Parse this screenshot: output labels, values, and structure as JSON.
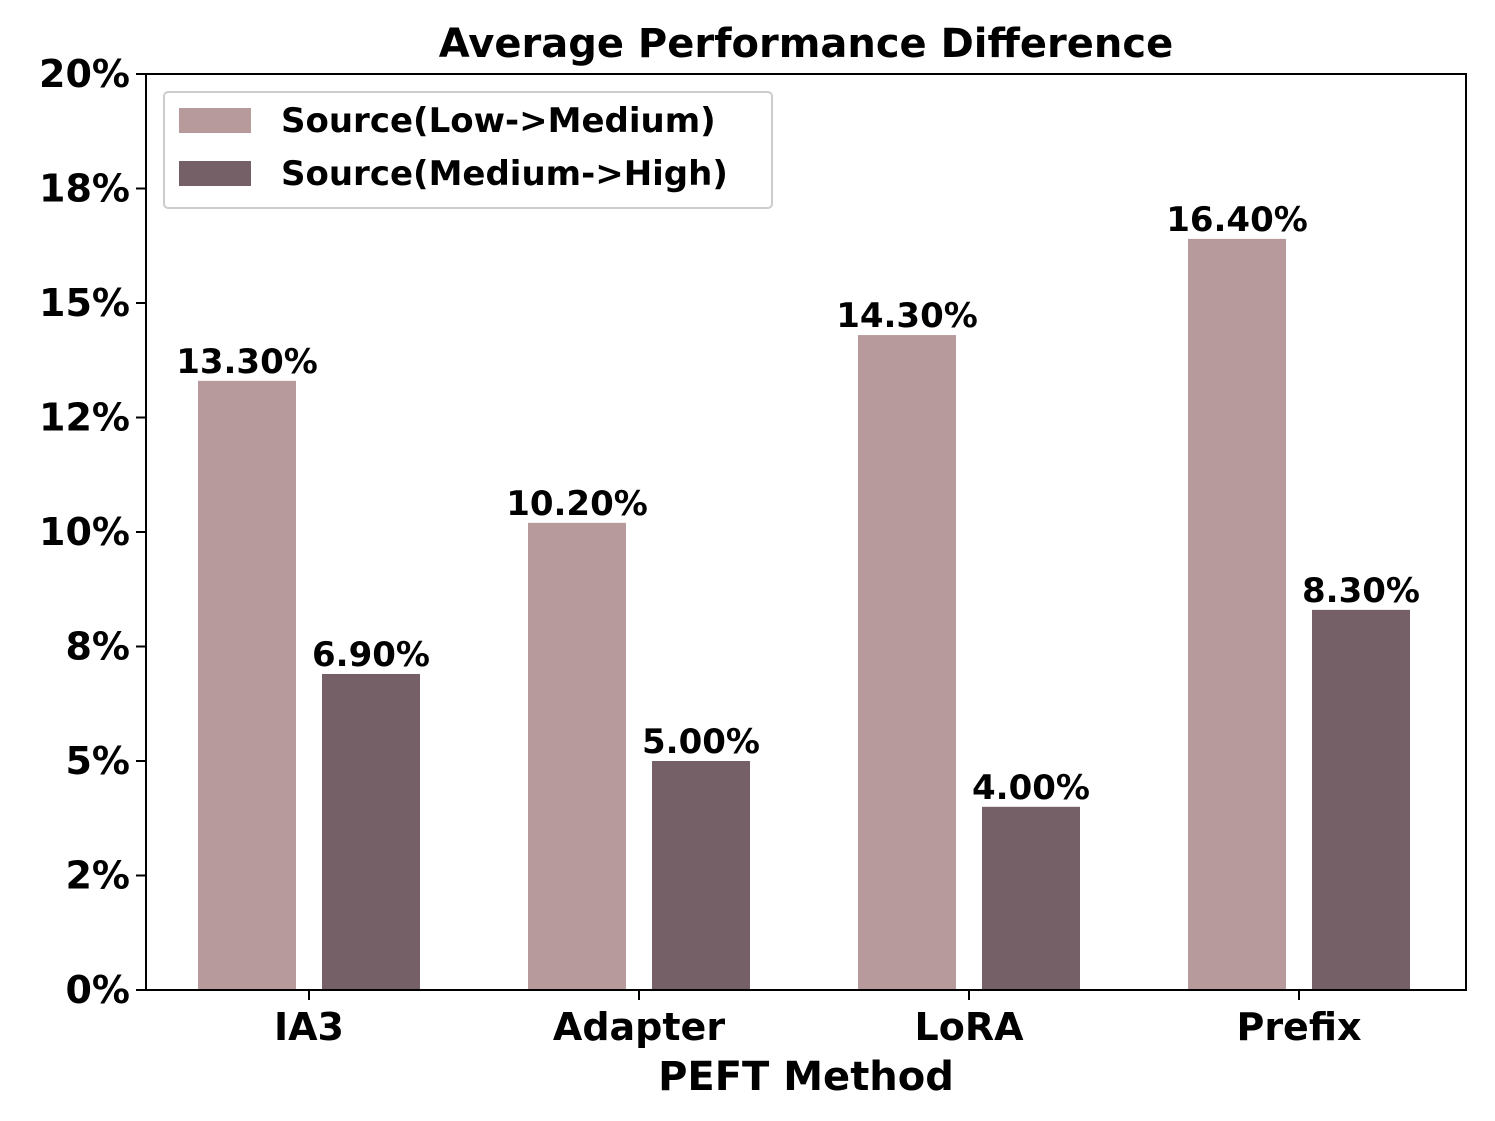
{
  "chart_data": {
    "type": "bar",
    "title": "Average Performance Difference",
    "xlabel": "PEFT Method",
    "ylabel": "",
    "categories": [
      "IA3",
      "Adapter",
      "LoRA",
      "Prefix"
    ],
    "series": [
      {
        "name": "Source(Low->Medium)",
        "color": "#b79a9b",
        "values": [
          13.3,
          10.2,
          14.3,
          16.4
        ],
        "labels": [
          "13.30%",
          "10.20%",
          "14.30%",
          "16.40%"
        ]
      },
      {
        "name": "Source(Medium->High)",
        "color": "#766068",
        "values": [
          6.9,
          5.0,
          4.0,
          8.3
        ],
        "labels": [
          "6.90%",
          "5.00%",
          "4.00%",
          "8.30%"
        ]
      }
    ],
    "ylim": [
      0,
      20
    ],
    "yticks": [
      0,
      2.5,
      5,
      7.5,
      10,
      12.5,
      15,
      17.5,
      20
    ],
    "ytick_labels": [
      "0%",
      "2%",
      "5%",
      "8%",
      "10%",
      "12%",
      "15%",
      "18%",
      "20%"
    ],
    "grid": false,
    "legend_position": "top-left"
  }
}
